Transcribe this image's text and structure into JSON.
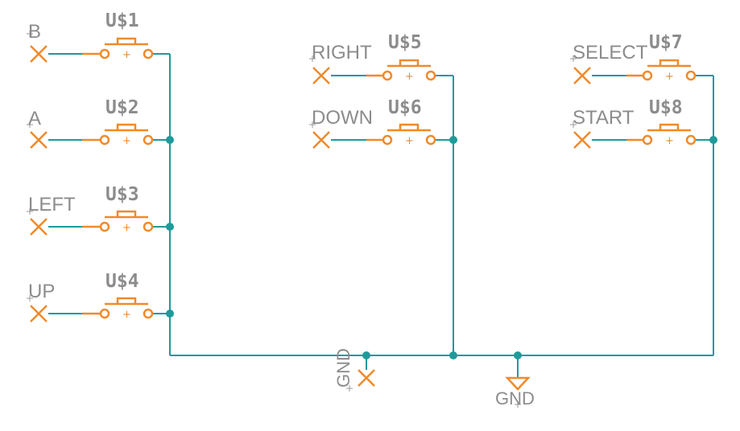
{
  "schematic": {
    "buttons": [
      {
        "part": "U$1",
        "net": "B"
      },
      {
        "part": "U$2",
        "net": "A"
      },
      {
        "part": "U$3",
        "net": "LEFT"
      },
      {
        "part": "U$4",
        "net": "UP"
      },
      {
        "part": "U$5",
        "net": "RIGHT"
      },
      {
        "part": "U$6",
        "net": "DOWN"
      },
      {
        "part": "U$7",
        "net": "SELECT"
      },
      {
        "part": "U$8",
        "net": "START"
      }
    ],
    "gnd_port_label": "GND",
    "gnd_symbol_label": "GND",
    "colors": {
      "wire": "#1f9a9a",
      "symbol": "#f08a2a",
      "label": "#8c8c8c"
    }
  }
}
